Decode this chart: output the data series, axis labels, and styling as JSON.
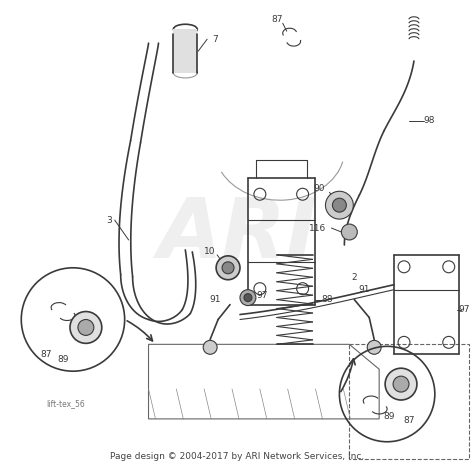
{
  "footer_text": "Page design © 2004-2017 by ARI Network Services, Inc.",
  "watermark_text": "ARI",
  "watermark_color": "#cccccc",
  "watermark_fontsize": 60,
  "watermark_alpha": 0.3,
  "bg_color": "#ffffff",
  "diagram_color": "#3a3a3a",
  "label_fontsize": 6.5,
  "footer_fontsize": 6.5,
  "footer_color": "#444444",
  "stamp_text": "lift-tex_56",
  "stamp_fontsize": 5.5,
  "stamp_color": "#777777",
  "fig_width": 4.74,
  "fig_height": 4.68,
  "dpi": 100
}
